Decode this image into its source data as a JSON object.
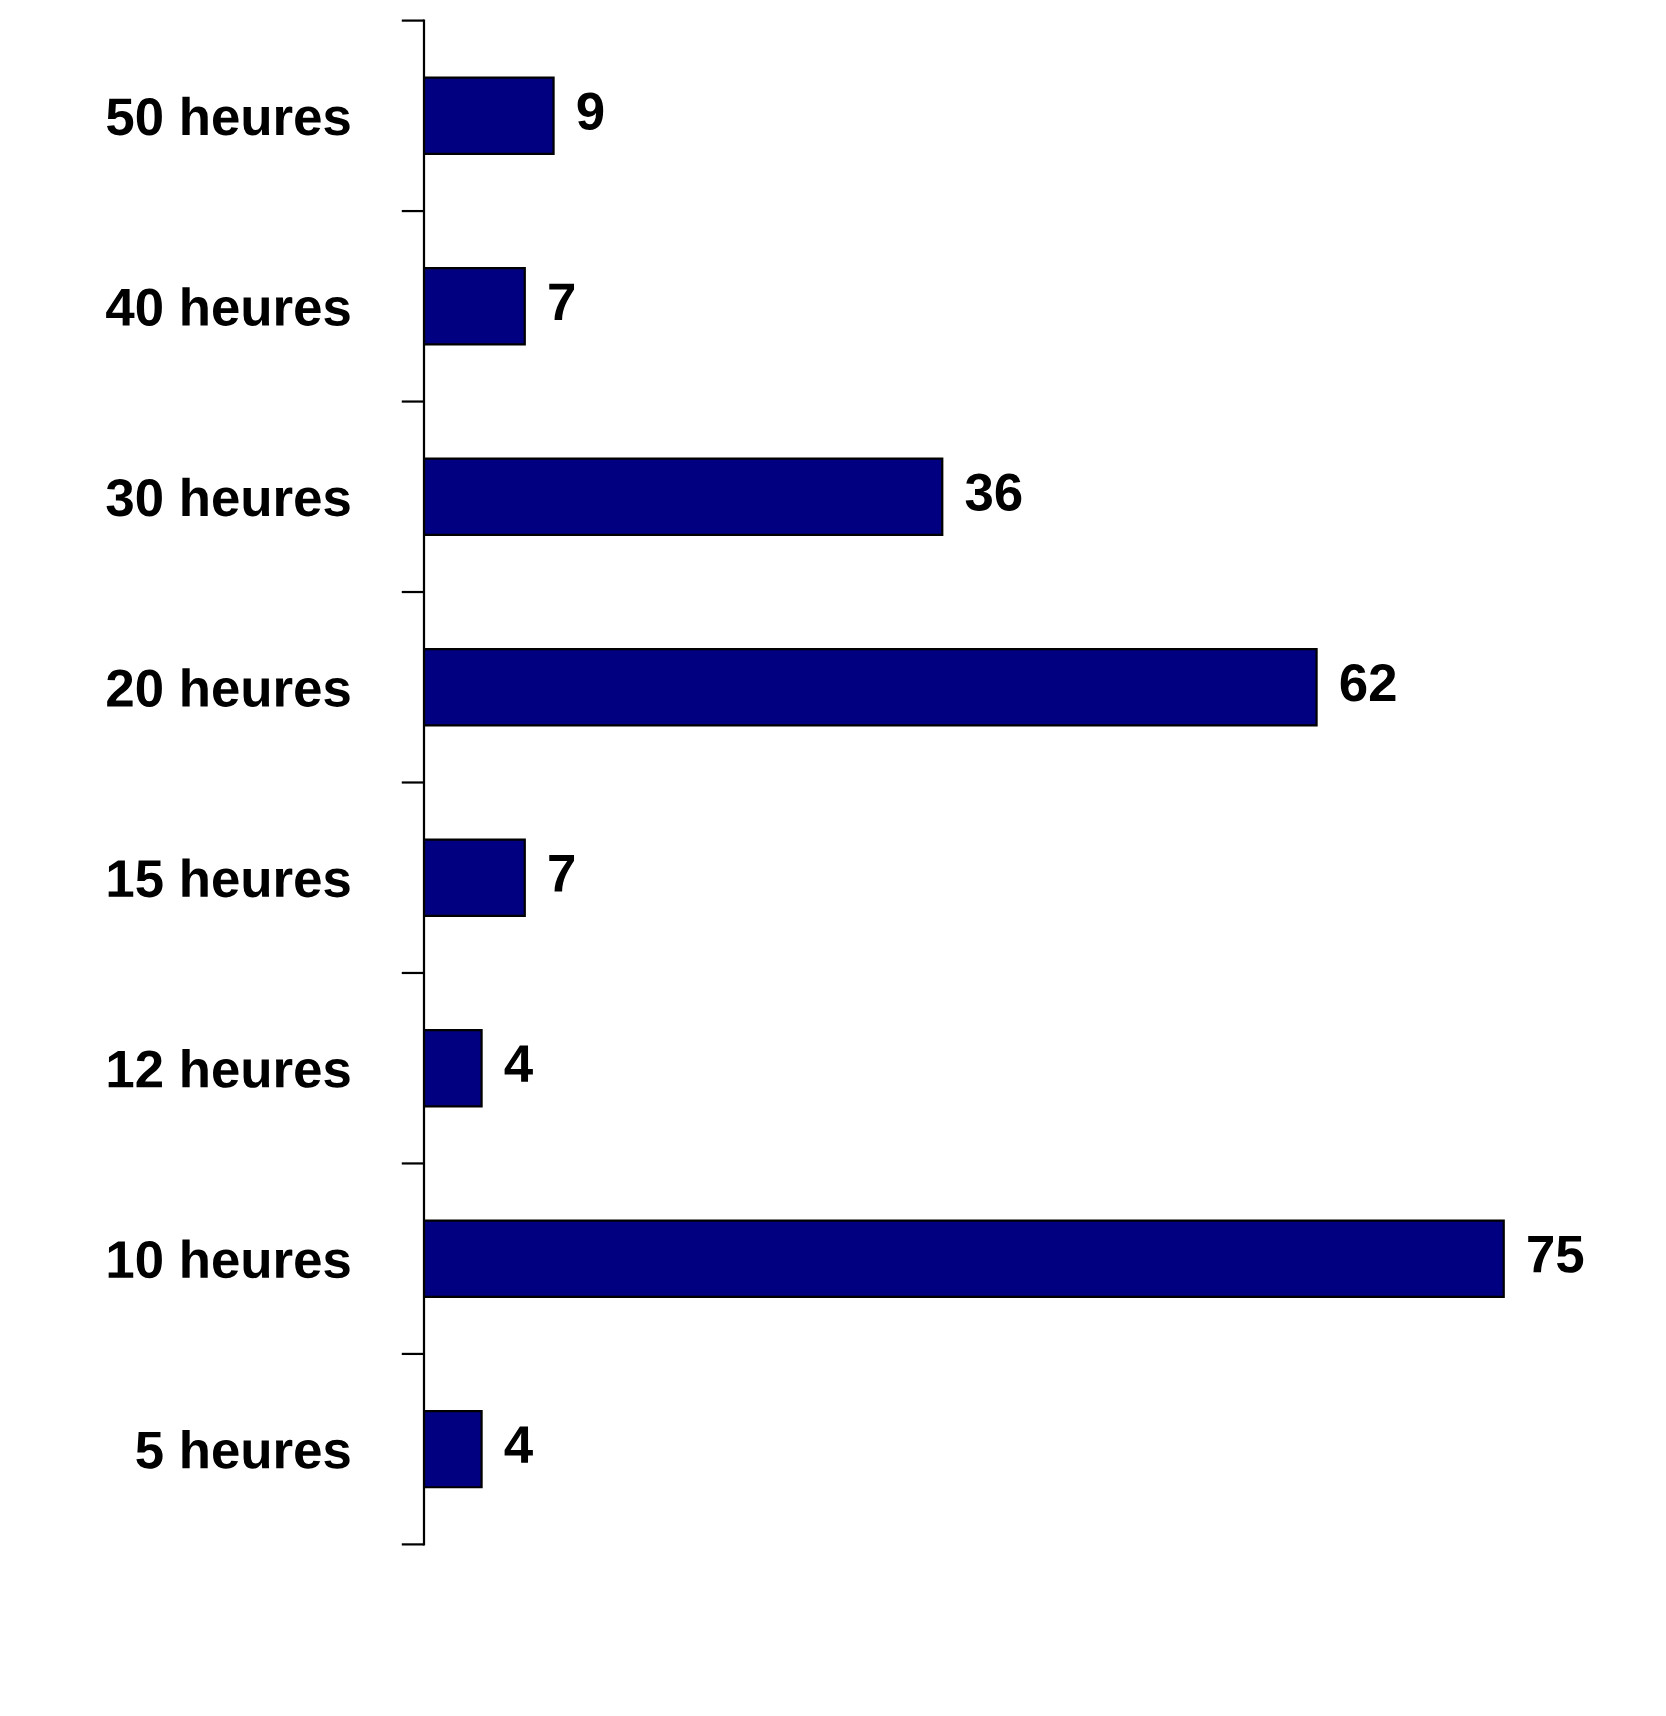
{
  "chart_data": {
    "type": "bar",
    "orientation": "horizontal",
    "categories": [
      "50 heures",
      "40 heures",
      "30 heures",
      "20 heures",
      "15 heures",
      "12 heures",
      "10 heures",
      "5 heures"
    ],
    "values": [
      9,
      7,
      36,
      62,
      7,
      4,
      75,
      4
    ],
    "color": "#000080",
    "data_labels": true,
    "grid": false,
    "legend": false
  }
}
